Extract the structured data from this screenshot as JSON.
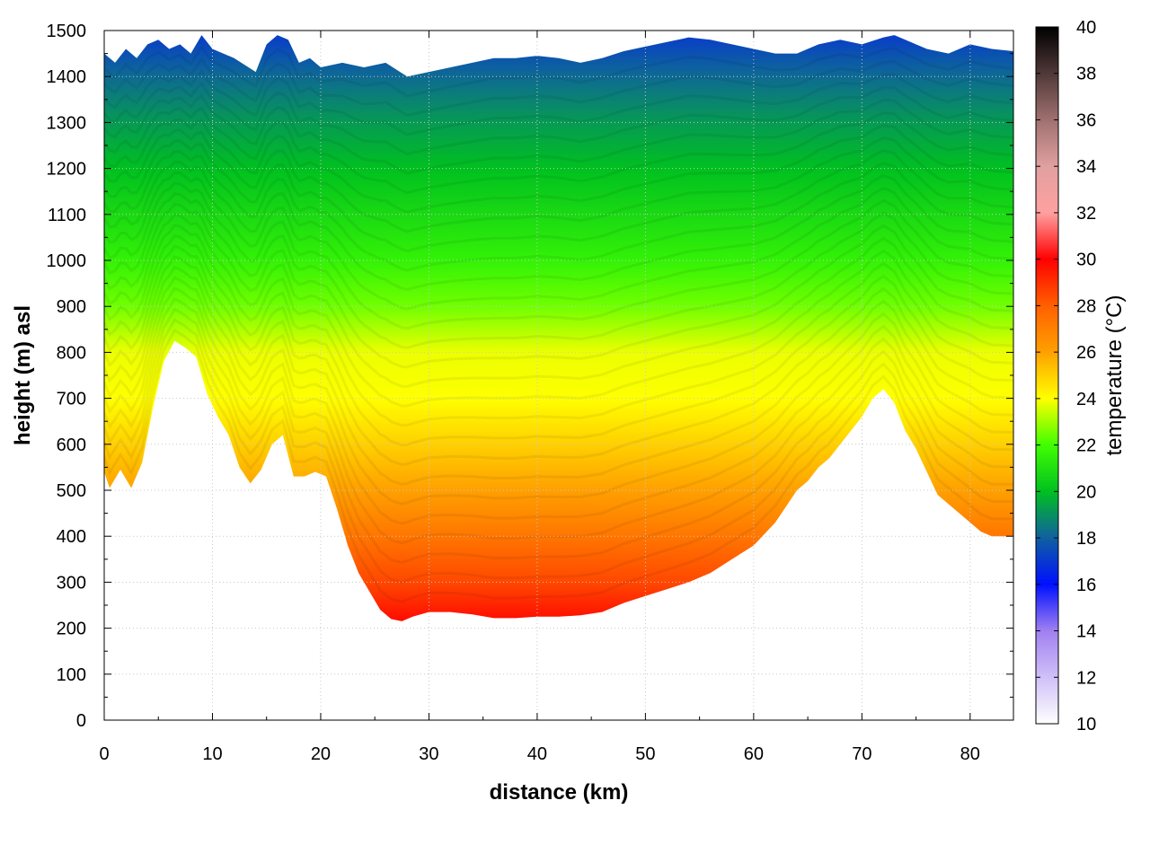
{
  "chart_data": {
    "type": "heatmap",
    "title": "",
    "xlabel": "distance (km)",
    "ylabel": "height (m) asl",
    "colorbar_label": "temperature (°C)",
    "xlim": [
      0,
      84
    ],
    "ylim": [
      0,
      1500
    ],
    "clim": [
      10,
      40
    ],
    "grid": true,
    "x_ticks": [
      0,
      10,
      20,
      30,
      40,
      50,
      60,
      70,
      80
    ],
    "x_tick_labels": [
      "0",
      "10",
      "20",
      "30",
      "40",
      "50",
      "60",
      "70",
      "80"
    ],
    "y_ticks": [
      0,
      100,
      200,
      300,
      400,
      500,
      600,
      700,
      800,
      900,
      1000,
      1100,
      1200,
      1300,
      1400,
      1500
    ],
    "y_tick_labels": [
      "0",
      "100",
      "200",
      "300",
      "400",
      "500",
      "600",
      "700",
      "800",
      "900",
      "1000",
      "1100",
      "1200",
      "1300",
      "1400",
      "1500"
    ],
    "colorbar_ticks": [
      10,
      12,
      14,
      16,
      18,
      20,
      22,
      24,
      26,
      28,
      30,
      32,
      34,
      36,
      38,
      40
    ],
    "colorbar_tick_labels": [
      "10",
      "12",
      "14",
      "16",
      "18",
      "20",
      "22",
      "24",
      "26",
      "28",
      "30",
      "32",
      "34",
      "36",
      "38",
      "40"
    ],
    "colormap": [
      {
        "t": 10,
        "color": "#ffffff"
      },
      {
        "t": 14,
        "color": "#a080f0"
      },
      {
        "t": 16,
        "color": "#0010ff"
      },
      {
        "t": 18,
        "color": "#1060a0"
      },
      {
        "t": 20,
        "color": "#00c020"
      },
      {
        "t": 22,
        "color": "#40ff00"
      },
      {
        "t": 24,
        "color": "#ffff00"
      },
      {
        "t": 26,
        "color": "#ffa000"
      },
      {
        "t": 28,
        "color": "#ff6000"
      },
      {
        "t": 30,
        "color": "#ff0000"
      },
      {
        "t": 32,
        "color": "#ffa0a0"
      },
      {
        "t": 34,
        "color": "#e0a0a0"
      },
      {
        "t": 36,
        "color": "#a07070"
      },
      {
        "t": 40,
        "color": "#000000"
      }
    ],
    "terrain": {
      "x": [
        0,
        0.5,
        1.5,
        2.5,
        3.5,
        4.5,
        5.5,
        6.5,
        7.5,
        8.5,
        9.5,
        10.5,
        11.5,
        12.5,
        13.5,
        14.5,
        15.5,
        16.5,
        17.5,
        18.5,
        19.5,
        20.5,
        21.5,
        22.5,
        23.5,
        24.5,
        25.5,
        26.5,
        27.5,
        28.5,
        30,
        32,
        34,
        36,
        38,
        40,
        42,
        44,
        46,
        48,
        50,
        52,
        54,
        56,
        58,
        60,
        62,
        64,
        65,
        66,
        67,
        68,
        69,
        70,
        71,
        72,
        73,
        74,
        75,
        76,
        77,
        78,
        79,
        80,
        81,
        82,
        83,
        84
      ],
      "height": [
        540,
        505,
        545,
        505,
        560,
        680,
        780,
        825,
        810,
        790,
        710,
        660,
        620,
        550,
        515,
        545,
        600,
        620,
        530,
        530,
        540,
        530,
        460,
        380,
        320,
        280,
        240,
        220,
        215,
        225,
        235,
        235,
        230,
        222,
        222,
        225,
        225,
        228,
        235,
        255,
        270,
        285,
        300,
        320,
        350,
        380,
        430,
        500,
        520,
        550,
        570,
        600,
        630,
        660,
        700,
        720,
        690,
        630,
        590,
        540,
        490,
        470,
        450,
        430,
        410,
        400,
        400,
        400
      ]
    },
    "temperature_profile": {
      "height": [
        200,
        300,
        400,
        500,
        600,
        700,
        800,
        900,
        1000,
        1100,
        1200,
        1300,
        1400,
        1500
      ],
      "temperature": [
        30,
        28.5,
        27.3,
        26,
        25,
        24,
        23.8,
        22.5,
        21.6,
        20.8,
        20,
        19.2,
        18.2,
        17
      ]
    },
    "top_boundary": {
      "x": [
        0,
        1,
        2,
        3,
        4,
        5,
        6,
        7,
        8,
        9,
        10,
        12,
        14,
        15,
        16,
        17,
        18,
        19,
        20,
        22,
        24,
        26,
        28,
        30,
        32,
        34,
        36,
        38,
        40,
        42,
        44,
        46,
        48,
        50,
        52,
        54,
        56,
        58,
        60,
        62,
        64,
        66,
        68,
        70,
        72,
        73,
        74,
        76,
        78,
        80,
        82,
        84
      ],
      "height": [
        1450,
        1430,
        1460,
        1440,
        1470,
        1480,
        1460,
        1470,
        1450,
        1490,
        1460,
        1440,
        1410,
        1470,
        1490,
        1480,
        1430,
        1440,
        1420,
        1430,
        1420,
        1430,
        1400,
        1410,
        1420,
        1430,
        1440,
        1440,
        1445,
        1440,
        1430,
        1440,
        1455,
        1465,
        1475,
        1485,
        1480,
        1470,
        1460,
        1450,
        1450,
        1470,
        1480,
        1470,
        1485,
        1490,
        1480,
        1460,
        1450,
        1470,
        1460,
        1455
      ]
    },
    "legend": "colorbar-right"
  }
}
